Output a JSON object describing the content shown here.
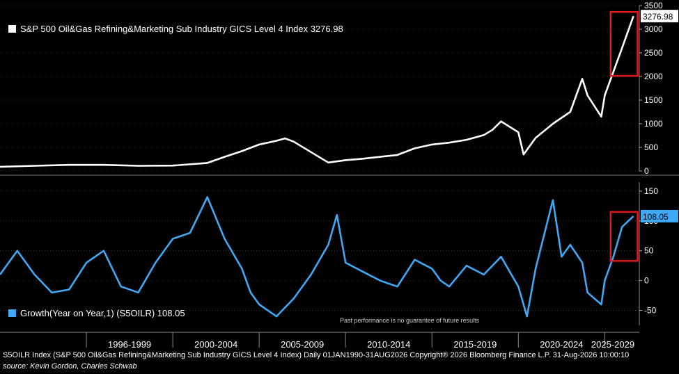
{
  "chart_data": [
    {
      "type": "line",
      "legend_label": "S&P 500 Oil&Gas Refining&Marketing Sub Industry GICS Level 4 Index 3276.98",
      "last_value_label": "3276.98",
      "y_ticks": [
        "0",
        "500",
        "1000",
        "1500",
        "2000",
        "2500",
        "3000",
        "3500"
      ],
      "ylim": [
        0,
        3500
      ],
      "color": "#ffffff",
      "series": [
        {
          "x": [
            1990,
            1992,
            1994,
            1996,
            1998,
            2000,
            2002,
            2003,
            2004,
            2005,
            2006,
            2006.5,
            2007,
            2008,
            2009,
            2010,
            2011,
            2012,
            2013,
            2014,
            2015,
            2016,
            2017,
            2018,
            2018.5,
            2019,
            2020,
            2020.3,
            2021,
            2022,
            2023,
            2023.7,
            2024,
            2024.8,
            2025,
            2025.5,
            2026,
            2026.66
          ],
          "values": [
            90,
            110,
            130,
            130,
            110,
            115,
            170,
            300,
            420,
            560,
            640,
            690,
            620,
            400,
            180,
            230,
            260,
            300,
            340,
            480,
            560,
            600,
            660,
            760,
            870,
            1050,
            820,
            350,
            700,
            1000,
            1250,
            1950,
            1600,
            1150,
            1600,
            2100,
            2600,
            3277
          ]
        }
      ]
    },
    {
      "type": "line",
      "legend_label": "Growth(Year on Year,1) (S5OILR) 108.05",
      "last_value_label": "108.05",
      "y_ticks": [
        "-50",
        "0",
        "50",
        "100",
        "150"
      ],
      "ylim": [
        -75,
        165
      ],
      "color": "#3fa9f5",
      "series": [
        {
          "x": [
            1990,
            1991,
            1992,
            1993,
            1994,
            1995,
            1996,
            1997,
            1998,
            1999,
            2000,
            2001,
            2002,
            2003,
            2004,
            2004.5,
            2005,
            2006,
            2007,
            2008,
            2009,
            2009.5,
            2010,
            2011,
            2012,
            2013,
            2014,
            2015,
            2015.5,
            2016,
            2017,
            2018,
            2019,
            2020,
            2020.5,
            2021,
            2022,
            2022.5,
            2023,
            2023.7,
            2024,
            2024.8,
            2025,
            2025.5,
            2026,
            2026.66
          ],
          "values": [
            10,
            50,
            10,
            -20,
            -15,
            30,
            50,
            -10,
            -20,
            30,
            70,
            80,
            140,
            70,
            20,
            -20,
            -40,
            -60,
            -30,
            10,
            60,
            110,
            30,
            15,
            0,
            -10,
            35,
            20,
            0,
            -10,
            25,
            10,
            40,
            -10,
            -60,
            20,
            135,
            40,
            60,
            30,
            -20,
            -40,
            0,
            40,
            90,
            108
          ]
        }
      ]
    }
  ],
  "x_ticks": [
    "1996-1999",
    "2000-2004",
    "2005-2009",
    "2010-2014",
    "2015-2019",
    "2020-2024",
    "2025-2029"
  ],
  "disclaimer": "Past performance is no guarantee of future results",
  "footer": "S5OILR Index (S&P 500 Oil&Gas Refining&Marketing Sub Industry GICS Level 4 Index) Daily 01JAN1990-31AUG2026 Copyright® 2026 Bloomberg Finance L.P. 31-Aug-2026 10:00:10",
  "source": "source: Kevin Gordon, Charles Schwab",
  "highlight_color": "#e0191f"
}
